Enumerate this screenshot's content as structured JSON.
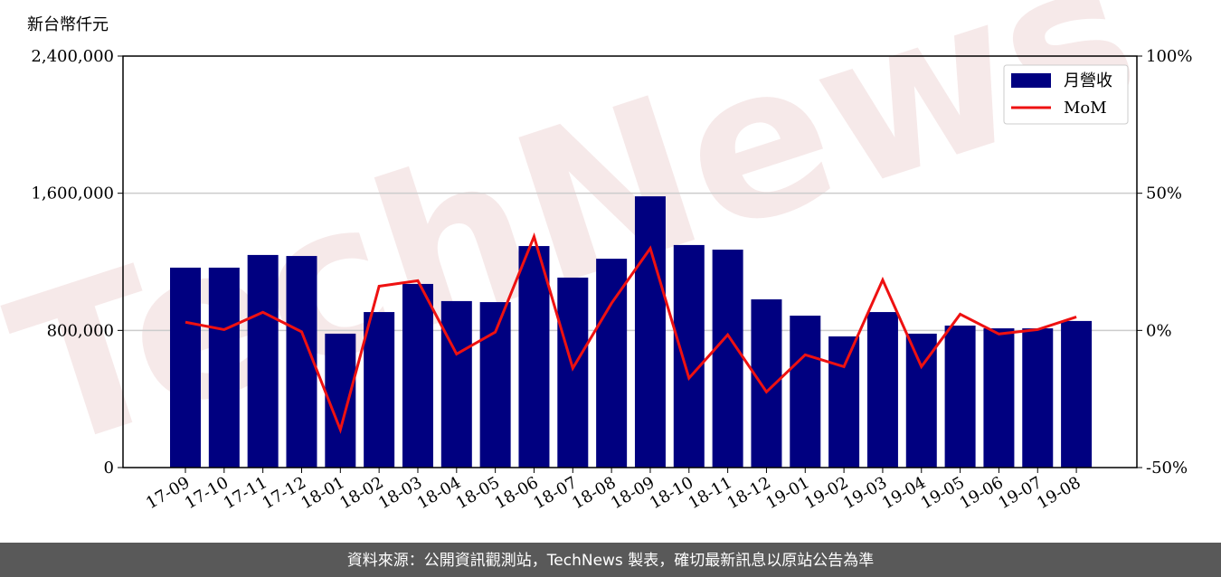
{
  "chart_data": {
    "type": "bar_line",
    "y_label": "新台幣仟元",
    "watermark": "TechNews",
    "footer": "資料來源：公開資訊觀測站，TechNews 製表，確切最新訊息以原站公告為準",
    "categories": [
      "17-09",
      "17-10",
      "17-11",
      "17-12",
      "18-01",
      "18-02",
      "18-03",
      "18-04",
      "18-05",
      "18-06",
      "18-07",
      "18-08",
      "18-09",
      "18-10",
      "18-11",
      "18-12",
      "19-01",
      "19-02",
      "19-03",
      "19-04",
      "19-05",
      "19-06",
      "19-07",
      "19-08"
    ],
    "series": [
      {
        "name": "月營收",
        "type": "bar",
        "color": "#000080",
        "values": [
          1166000,
          1166000,
          1240000,
          1234000,
          781000,
          907000,
          1071000,
          971000,
          965000,
          1292000,
          1108000,
          1218000,
          1582000,
          1298000,
          1271000,
          981000,
          886000,
          765000,
          907000,
          781000,
          828000,
          812000,
          812000,
          855000
        ]
      },
      {
        "name": "MoM",
        "type": "line",
        "axis": "y2",
        "color": "#ee1111",
        "values": [
          3.0,
          0.3,
          6.6,
          -0.5,
          -36.2,
          16.1,
          18.1,
          -8.6,
          -0.6,
          34.2,
          -13.8,
          9.9,
          29.9,
          -17.4,
          -1.6,
          -22.4,
          -8.9,
          -13.2,
          18.4,
          -13.2,
          5.9,
          -1.3,
          0.3,
          4.9
        ]
      }
    ],
    "ylim": [
      0,
      2400000
    ],
    "yticks": [
      0,
      {
        "value": 800000,
        "label": "800,000"
      },
      {
        "value": 1600000,
        "label": "1,600,000"
      },
      {
        "value": 2400000,
        "label": "2,400,000"
      }
    ],
    "y2lim": [
      -50,
      100
    ],
    "y2ticks": [
      {
        "value": -50,
        "label": "-50%"
      },
      {
        "value": 0,
        "label": "0%"
      },
      {
        "value": 50,
        "label": "50%"
      },
      {
        "value": 100,
        "label": "100%"
      }
    ],
    "grid": true,
    "legend": "upper right"
  }
}
